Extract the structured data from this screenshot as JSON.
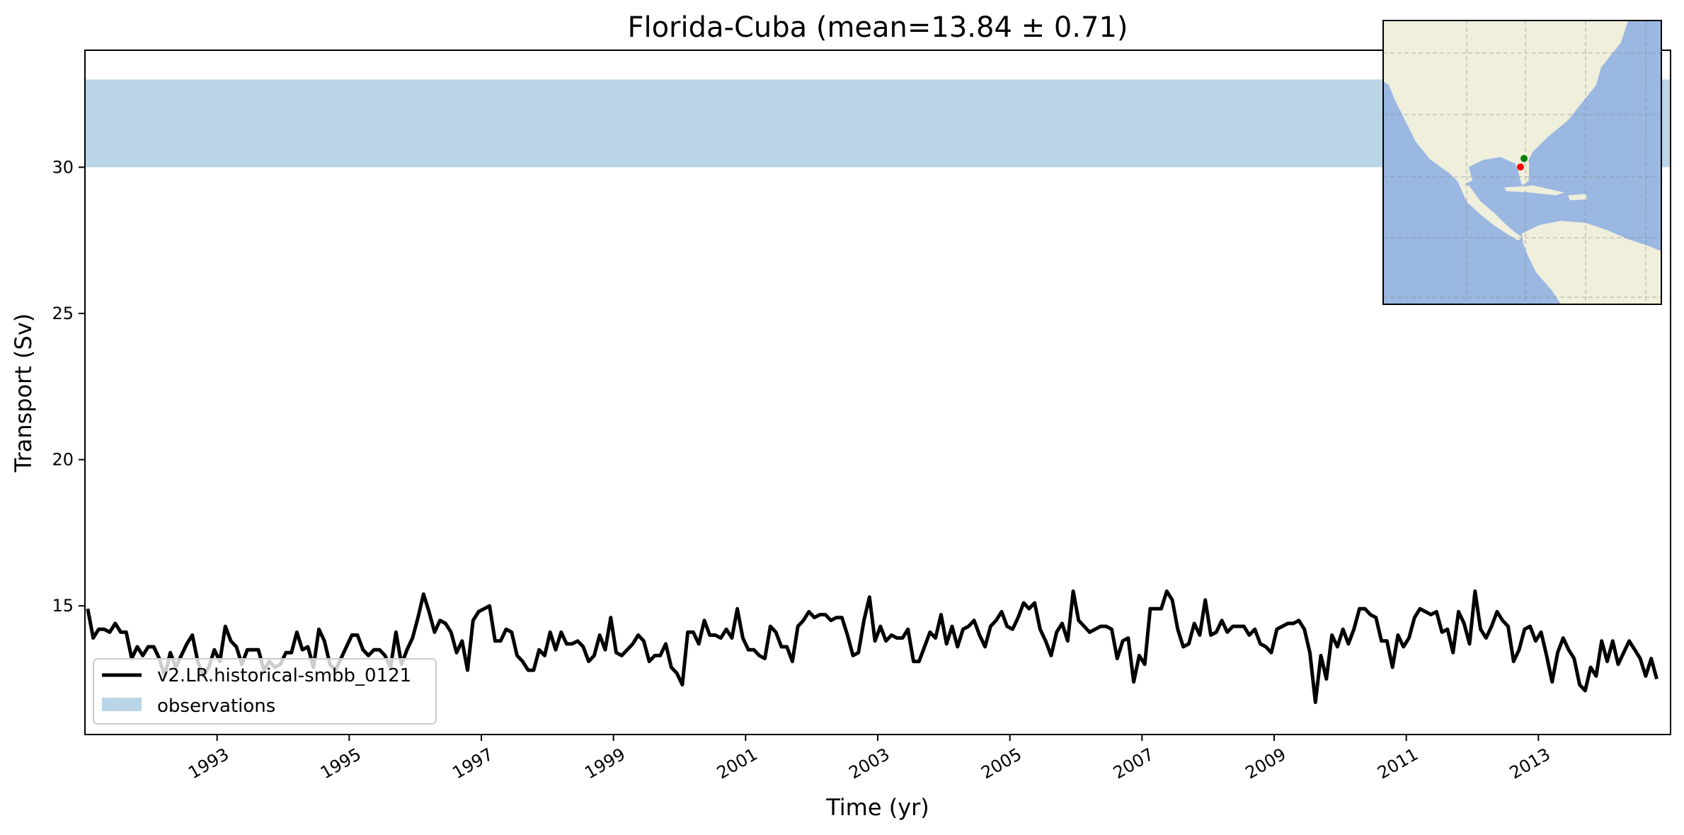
{
  "chart_data": {
    "type": "line",
    "title": "Florida-Cuba (mean=13.84 ± 0.71)",
    "xlabel": "Time (yr)",
    "ylabel": "Transport (Sv)",
    "xlim": [
      1991.0,
      2015.0
    ],
    "ylim": [
      10.6,
      34.0
    ],
    "xticks": [
      "1993",
      "1995",
      "1997",
      "1999",
      "2001",
      "2003",
      "2005",
      "2007",
      "2009",
      "2011",
      "2013"
    ],
    "yticks": [
      "15",
      "20",
      "25",
      "30"
    ],
    "grid": false,
    "legend_position": "lower-left",
    "observations": {
      "name": "observations",
      "min": 30.0,
      "max": 33.0,
      "color": "#bad5e7"
    },
    "series": [
      {
        "name": "v2.LR.historical-smbb_0121",
        "color": "#000000",
        "x_start": 1991.0417,
        "step": 0.08333,
        "values": [
          14.9,
          13.9,
          14.2,
          14.2,
          14.1,
          14.4,
          14.1,
          14.1,
          13.2,
          13.6,
          13.3,
          13.6,
          13.6,
          13.2,
          12.6,
          13.4,
          12.9,
          13.3,
          13.7,
          14.0,
          13.1,
          12.6,
          12.9,
          13.5,
          13.1,
          14.3,
          13.8,
          13.6,
          13.0,
          13.5,
          13.5,
          13.5,
          12.8,
          13.1,
          12.9,
          13.0,
          13.4,
          13.4,
          14.1,
          13.5,
          13.6,
          12.9,
          14.2,
          13.8,
          13.0,
          12.8,
          13.2,
          13.6,
          14.0,
          14.0,
          13.5,
          13.3,
          13.5,
          13.5,
          13.3,
          12.9,
          14.1,
          13.0,
          13.5,
          13.9,
          14.6,
          15.4,
          14.8,
          14.1,
          14.5,
          14.4,
          14.1,
          13.4,
          13.8,
          12.8,
          14.5,
          14.8,
          14.9,
          15.0,
          13.8,
          13.8,
          14.2,
          14.1,
          13.3,
          13.1,
          12.8,
          12.8,
          13.5,
          13.3,
          14.1,
          13.5,
          14.1,
          13.7,
          13.7,
          13.8,
          13.6,
          13.1,
          13.3,
          14.0,
          13.5,
          14.6,
          13.4,
          13.3,
          13.5,
          13.7,
          14.0,
          13.8,
          13.1,
          13.3,
          13.3,
          13.7,
          12.9,
          12.7,
          12.3,
          14.1,
          14.1,
          13.7,
          14.5,
          14.0,
          14.0,
          13.9,
          14.2,
          13.9,
          14.9,
          13.9,
          13.5,
          13.5,
          13.3,
          13.2,
          14.3,
          14.1,
          13.6,
          13.6,
          13.1,
          14.3,
          14.5,
          14.8,
          14.6,
          14.7,
          14.7,
          14.5,
          14.6,
          14.6,
          14.0,
          13.3,
          13.4,
          14.5,
          15.3,
          13.8,
          14.3,
          13.8,
          14.0,
          13.9,
          13.9,
          14.2,
          13.1,
          13.1,
          13.6,
          14.1,
          13.9,
          14.7,
          13.7,
          14.3,
          13.6,
          14.2,
          14.3,
          14.5,
          14.0,
          13.6,
          14.3,
          14.5,
          14.8,
          14.3,
          14.2,
          14.6,
          15.1,
          14.9,
          15.1,
          14.2,
          13.8,
          13.3,
          14.1,
          14.4,
          13.8,
          15.5,
          14.5,
          14.3,
          14.1,
          14.2,
          14.3,
          14.3,
          14.2,
          13.2,
          13.8,
          13.9,
          12.4,
          13.3,
          13.0,
          14.9,
          14.9,
          14.9,
          15.5,
          15.2,
          14.2,
          13.6,
          13.7,
          14.4,
          14.0,
          15.2,
          14.0,
          14.1,
          14.5,
          14.1,
          14.3,
          14.3,
          14.3,
          14.0,
          14.2,
          13.7,
          13.6,
          13.4,
          14.2,
          14.3,
          14.4,
          14.4,
          14.5,
          14.2,
          13.4,
          11.7,
          13.3,
          12.5,
          14.0,
          13.6,
          14.2,
          13.7,
          14.2,
          14.9,
          14.9,
          14.7,
          14.6,
          13.8,
          13.8,
          12.9,
          14.0,
          13.6,
          13.9,
          14.6,
          14.9,
          14.8,
          14.7,
          14.8,
          14.1,
          14.2,
          13.4,
          14.8,
          14.4,
          13.7,
          15.5,
          14.2,
          13.9,
          14.3,
          14.8,
          14.5,
          14.3,
          13.1,
          13.5,
          14.2,
          14.3,
          13.8,
          14.1,
          13.3,
          12.4,
          13.4,
          13.9,
          13.5,
          13.2,
          12.3,
          12.1,
          12.9,
          12.6,
          13.8,
          13.1,
          13.8,
          13.0,
          13.4,
          13.8,
          13.5,
          13.2,
          12.6,
          13.2,
          12.5
        ]
      }
    ]
  },
  "inset_map": {
    "description_icon": "map-inset",
    "land_color": "#efefdc",
    "ocean_color": "#9bb8e2",
    "markers": [
      {
        "name": "start-point",
        "color": "#008000"
      },
      {
        "name": "end-point",
        "color": "#ff0000"
      }
    ]
  }
}
